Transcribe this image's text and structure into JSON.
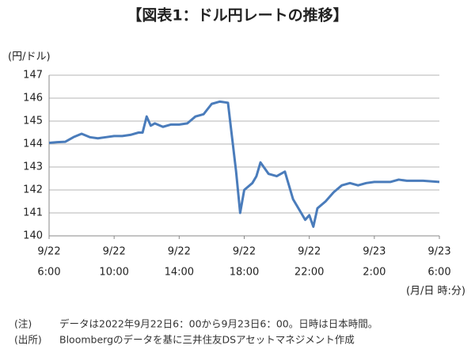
{
  "chart_data": {
    "type": "line",
    "title": "【図表1：ドル円レートの推移】",
    "y_label": "(円/ドル)",
    "x_label": "(月/日 時:分)",
    "x": [
      "2022-09-22 06:00",
      "2022-09-22 06:30",
      "2022-09-22 07:00",
      "2022-09-22 07:30",
      "2022-09-22 08:00",
      "2022-09-22 08:30",
      "2022-09-22 09:00",
      "2022-09-22 09:30",
      "2022-09-22 10:00",
      "2022-09-22 10:30",
      "2022-09-22 11:00",
      "2022-09-22 11:30",
      "2022-09-22 11:45",
      "2022-09-22 12:00",
      "2022-09-22 12:15",
      "2022-09-22 12:30",
      "2022-09-22 13:00",
      "2022-09-22 13:30",
      "2022-09-22 14:00",
      "2022-09-22 14:30",
      "2022-09-22 15:00",
      "2022-09-22 15:30",
      "2022-09-22 16:00",
      "2022-09-22 16:30",
      "2022-09-22 17:00",
      "2022-09-22 17:15",
      "2022-09-22 17:30",
      "2022-09-22 17:45",
      "2022-09-22 18:00",
      "2022-09-22 18:30",
      "2022-09-22 18:45",
      "2022-09-22 19:00",
      "2022-09-22 19:30",
      "2022-09-22 20:00",
      "2022-09-22 20:30",
      "2022-09-22 21:00",
      "2022-09-22 21:30",
      "2022-09-22 21:45",
      "2022-09-22 22:00",
      "2022-09-22 22:15",
      "2022-09-22 22:30",
      "2022-09-22 23:00",
      "2022-09-22 23:30",
      "2022-09-23 00:00",
      "2022-09-23 00:30",
      "2022-09-23 01:00",
      "2022-09-23 01:30",
      "2022-09-23 02:00",
      "2022-09-23 03:00",
      "2022-09-23 03:30",
      "2022-09-23 04:00",
      "2022-09-23 05:00",
      "2022-09-23 06:00"
    ],
    "series": [
      {
        "name": "ドル円",
        "color": "#4a7cbb",
        "values": [
          144.05,
          144.08,
          144.1,
          144.3,
          144.45,
          144.3,
          144.25,
          144.3,
          144.35,
          144.35,
          144.4,
          144.5,
          144.5,
          145.2,
          144.8,
          144.9,
          144.75,
          144.85,
          144.85,
          144.9,
          145.2,
          145.3,
          145.75,
          145.85,
          145.8,
          144.3,
          142.8,
          141.0,
          142.0,
          142.3,
          142.6,
          143.2,
          142.7,
          142.6,
          142.8,
          141.6,
          141.0,
          140.7,
          140.9,
          140.4,
          141.2,
          141.5,
          141.9,
          142.2,
          142.3,
          142.2,
          142.3,
          142.35,
          142.35,
          142.45,
          142.4,
          142.4,
          142.35
        ]
      }
    ],
    "xlim": [
      "2022-09-22 06:00",
      "2022-09-23 06:00"
    ],
    "xticks": [
      {
        "value": "2022-09-22 06:00",
        "label": [
          "9/22",
          "6:00"
        ]
      },
      {
        "value": "2022-09-22 10:00",
        "label": [
          "9/22",
          "10:00"
        ]
      },
      {
        "value": "2022-09-22 14:00",
        "label": [
          "9/22",
          "14:00"
        ]
      },
      {
        "value": "2022-09-22 18:00",
        "label": [
          "9/22",
          "18:00"
        ]
      },
      {
        "value": "2022-09-22 22:00",
        "label": [
          "9/22",
          "22:00"
        ]
      },
      {
        "value": "2022-09-23 02:00",
        "label": [
          "9/23",
          "2:00"
        ]
      },
      {
        "value": "2022-09-23 06:00",
        "label": [
          "9/23",
          "6:00"
        ]
      }
    ],
    "ylim": [
      140,
      147
    ],
    "yticks": [
      140,
      141,
      142,
      143,
      144,
      145,
      146,
      147
    ],
    "grid": true,
    "notes": [
      {
        "label": "(注)",
        "text": "データは2022年9月22日6：00から9月23日6：00。日時は日本時間。"
      },
      {
        "label": "(出所)",
        "text": "Bloombergのデータを基に三井住友DSアセットマネジメント作成"
      }
    ]
  }
}
